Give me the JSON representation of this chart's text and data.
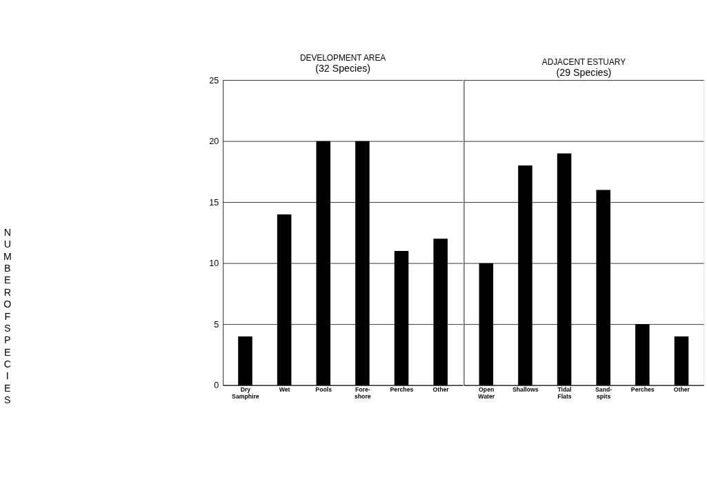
{
  "chart_data": [
    {
      "type": "bar",
      "title": "DEVELOPMENT AREA",
      "subtitle": "(32 Species)",
      "ylabel": "NUMBER OF SPECIES",
      "categories": [
        "Dry Samphire",
        "Wet",
        "Pools",
        "Fore-shore",
        "Perches",
        "Other"
      ],
      "values": [
        4,
        14,
        20,
        20,
        11,
        12
      ],
      "color": "#000000",
      "ylim": [
        0,
        25
      ],
      "yticks": [
        0,
        5,
        10,
        15,
        20,
        25
      ],
      "grid": "y"
    },
    {
      "type": "bar",
      "title": "ADJACENT ESTUARY",
      "subtitle": "(29 Species)",
      "categories": [
        "Open Water",
        "Shallows",
        "Tidal Flats",
        "Sand-spits",
        "Perches",
        "Other"
      ],
      "values": [
        10,
        18,
        19,
        16,
        5,
        4
      ],
      "color": "#000000",
      "ylim": [
        0,
        25
      ],
      "yticks": [
        0,
        5,
        10,
        15,
        20,
        25
      ],
      "grid": "y",
      "tick_labels": "x"
    }
  ]
}
